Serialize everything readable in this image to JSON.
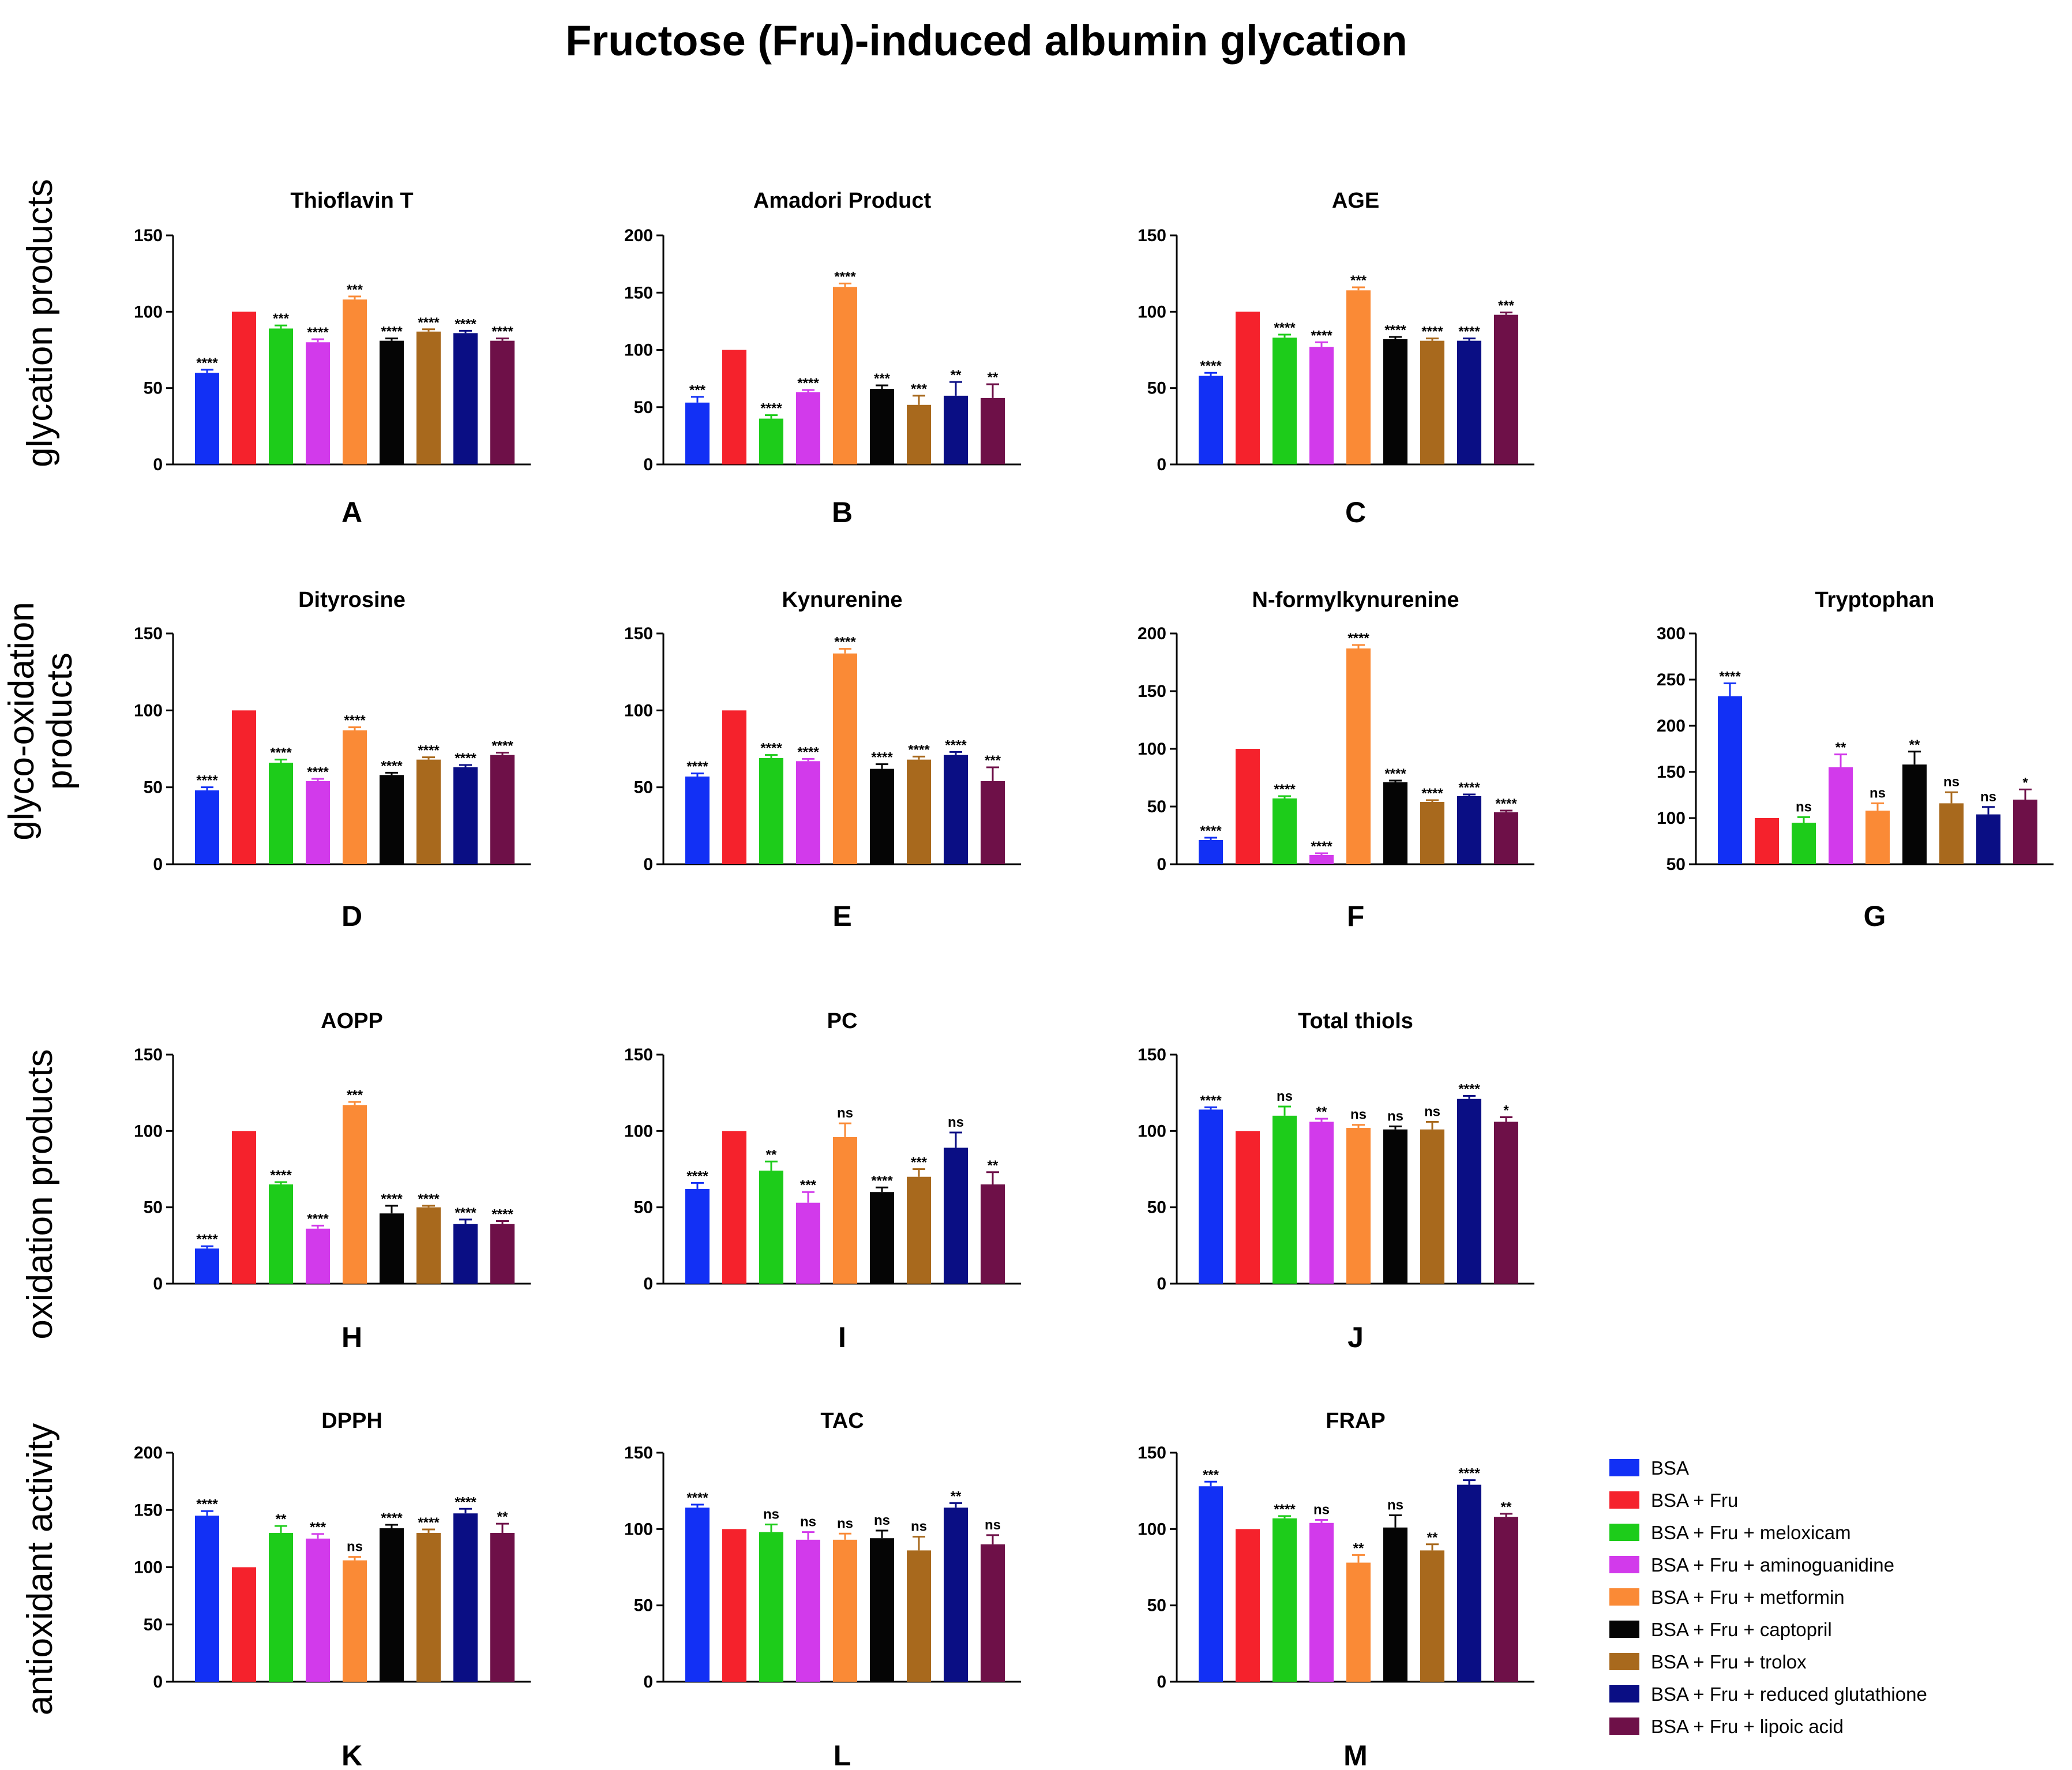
{
  "title": "Fructose (Fru)-induced albumin glycation",
  "row_labels": [
    {
      "lines": [
        "glycation products"
      ]
    },
    {
      "lines": [
        "glyco-oxidation",
        "products"
      ]
    },
    {
      "lines": [
        "oxidation products"
      ]
    },
    {
      "lines": [
        "antioxidant activity"
      ]
    }
  ],
  "legend": [
    {
      "label": "BSA",
      "color": "#1230F5"
    },
    {
      "label": "BSA + Fru",
      "color": "#F5222C"
    },
    {
      "label": "BSA + Fru + meloxicam",
      "color": "#1DCC1A"
    },
    {
      "label": "BSA + Fru + aminoguanidine",
      "color": "#D23AEB"
    },
    {
      "label": "BSA + Fru + metformin",
      "color": "#FA8A36"
    },
    {
      "label": "BSA + Fru + captopril",
      "color": "#050505"
    },
    {
      "label": "BSA + Fru + trolox",
      "color": "#A8691D"
    },
    {
      "label": "BSA + Fru + reduced glutathione",
      "color": "#0A0E84"
    },
    {
      "label": "BSA + Fru + lipoic acid",
      "color": "#6E1048"
    }
  ],
  "chart_data": [
    {
      "type": "bar",
      "title": "Thioflavin T",
      "panel": "A",
      "ylim": [
        0,
        150
      ],
      "yticks": [
        0,
        50,
        100,
        150
      ],
      "values": [
        60,
        100,
        89,
        80,
        108,
        81,
        87,
        86,
        81
      ],
      "errors": [
        2,
        0,
        2,
        2,
        2,
        1.5,
        1.5,
        1.5,
        1.5
      ],
      "significance": [
        "****",
        "",
        "***",
        "****",
        "***",
        "****",
        "****",
        "****",
        "****"
      ]
    },
    {
      "type": "bar",
      "title": "Amadori Product",
      "panel": "B",
      "ylim": [
        0,
        200
      ],
      "yticks": [
        0,
        50,
        100,
        150,
        200
      ],
      "values": [
        54,
        100,
        40,
        63,
        155,
        66,
        52,
        60,
        58
      ],
      "errors": [
        5,
        0,
        3,
        2,
        3,
        3,
        8,
        12,
        12
      ],
      "significance": [
        "***",
        "",
        "****",
        "****",
        "****",
        "***",
        "***",
        "**",
        "**"
      ]
    },
    {
      "type": "bar",
      "title": "AGE",
      "panel": "C",
      "ylim": [
        0,
        150
      ],
      "yticks": [
        0,
        50,
        100,
        150
      ],
      "values": [
        58,
        100,
        83,
        77,
        114,
        82,
        81,
        81,
        98
      ],
      "errors": [
        2,
        0,
        2,
        3,
        2,
        1.5,
        1.5,
        1.5,
        1.5
      ],
      "significance": [
        "****",
        "",
        "****",
        "****",
        "***",
        "****",
        "****",
        "****",
        "***"
      ]
    },
    {
      "type": "bar",
      "title": "Dityrosine",
      "panel": "D",
      "ylim": [
        0,
        150
      ],
      "yticks": [
        0,
        50,
        100,
        150
      ],
      "values": [
        48,
        100,
        66,
        54,
        87,
        58,
        68,
        63,
        71
      ],
      "errors": [
        2,
        0,
        2,
        1.5,
        2,
        1.5,
        1.5,
        1.5,
        1.5
      ],
      "significance": [
        "****",
        "",
        "****",
        "****",
        "****",
        "****",
        "****",
        "****",
        "****"
      ]
    },
    {
      "type": "bar",
      "title": "Kynurenine",
      "panel": "E",
      "ylim": [
        0,
        150
      ],
      "yticks": [
        0,
        50,
        100,
        150
      ],
      "values": [
        57,
        100,
        69,
        67,
        137,
        62,
        68,
        71,
        54
      ],
      "errors": [
        2,
        0,
        2,
        1.5,
        3,
        3,
        2,
        2,
        9
      ],
      "significance": [
        "****",
        "",
        "****",
        "****",
        "****",
        "****",
        "****",
        "****",
        "***"
      ]
    },
    {
      "type": "bar",
      "title": "N-formylkynurenine",
      "panel": "F",
      "ylim": [
        0,
        200
      ],
      "yticks": [
        0,
        50,
        100,
        150,
        200
      ],
      "values": [
        21,
        100,
        57,
        8,
        187,
        71,
        54,
        59,
        45
      ],
      "errors": [
        2,
        0,
        2,
        1.5,
        3,
        1.5,
        1.5,
        1.5,
        1.5
      ],
      "significance": [
        "****",
        "",
        "****",
        "****",
        "****",
        "****",
        "****",
        "****",
        "****"
      ]
    },
    {
      "type": "bar",
      "title": "Tryptophan",
      "panel": "G",
      "ylim": [
        50,
        300
      ],
      "yticks": [
        50,
        100,
        150,
        200,
        250,
        300
      ],
      "values": [
        232,
        100,
        95,
        155,
        108,
        158,
        116,
        104,
        120
      ],
      "errors": [
        14,
        0,
        6,
        14,
        8,
        14,
        12,
        8,
        11
      ],
      "significance": [
        "****",
        "",
        "ns",
        "**",
        "ns",
        "**",
        "ns",
        "ns",
        "*"
      ]
    },
    {
      "type": "bar",
      "title": "AOPP",
      "panel": "H",
      "ylim": [
        0,
        150
      ],
      "yticks": [
        0,
        50,
        100,
        150
      ],
      "values": [
        23,
        100,
        65,
        36,
        117,
        46,
        50,
        39,
        39
      ],
      "errors": [
        1.5,
        0,
        1.5,
        2,
        2,
        5,
        1,
        3,
        2
      ],
      "significance": [
        "****",
        "",
        "****",
        "****",
        "***",
        "****",
        "****",
        "****",
        "****"
      ]
    },
    {
      "type": "bar",
      "title": "PC",
      "panel": "I",
      "ylim": [
        0,
        150
      ],
      "yticks": [
        0,
        50,
        100,
        150
      ],
      "values": [
        62,
        100,
        74,
        53,
        96,
        60,
        70,
        89,
        65
      ],
      "errors": [
        4,
        0,
        6,
        7,
        9,
        3,
        5,
        10,
        8
      ],
      "significance": [
        "****",
        "",
        "**",
        "***",
        "ns",
        "****",
        "***",
        "ns",
        "**"
      ]
    },
    {
      "type": "bar",
      "title": "Total thiols",
      "panel": "J",
      "ylim": [
        0,
        150
      ],
      "yticks": [
        0,
        50,
        100,
        150
      ],
      "values": [
        114,
        100,
        110,
        106,
        102,
        101,
        101,
        121,
        106
      ],
      "errors": [
        1.5,
        0,
        6,
        2,
        2,
        2,
        5,
        2,
        3
      ],
      "significance": [
        "****",
        "",
        "ns",
        "**",
        "ns",
        "ns",
        "ns",
        "****",
        "*"
      ]
    },
    {
      "type": "bar",
      "title": "DPPH",
      "panel": "K",
      "ylim": [
        0,
        200
      ],
      "yticks": [
        0,
        50,
        100,
        150,
        200
      ],
      "values": [
        145,
        100,
        130,
        125,
        106,
        134,
        130,
        147,
        130
      ],
      "errors": [
        4,
        0,
        6,
        4,
        3,
        3,
        3,
        4,
        8
      ],
      "significance": [
        "****",
        "",
        "**",
        "***",
        "ns",
        "****",
        "****",
        "****",
        "**"
      ]
    },
    {
      "type": "bar",
      "title": "TAC",
      "panel": "L",
      "ylim": [
        0,
        150
      ],
      "yticks": [
        0,
        50,
        100,
        150
      ],
      "values": [
        114,
        100,
        98,
        93,
        93,
        94,
        86,
        114,
        90
      ],
      "errors": [
        2,
        0,
        5,
        5,
        4,
        5,
        9,
        3,
        6
      ],
      "significance": [
        "****",
        "",
        "ns",
        "ns",
        "ns",
        "ns",
        "ns",
        "**",
        "ns"
      ]
    },
    {
      "type": "bar",
      "title": "FRAP",
      "panel": "M",
      "ylim": [
        0,
        150
      ],
      "yticks": [
        0,
        50,
        100,
        150
      ],
      "values": [
        128,
        100,
        107,
        104,
        78,
        101,
        86,
        129,
        108
      ],
      "errors": [
        3,
        0,
        1.5,
        2,
        5,
        8,
        4,
        3,
        2
      ],
      "significance": [
        "***",
        "",
        "****",
        "ns",
        "**",
        "ns",
        "**",
        "****",
        "**"
      ]
    }
  ]
}
